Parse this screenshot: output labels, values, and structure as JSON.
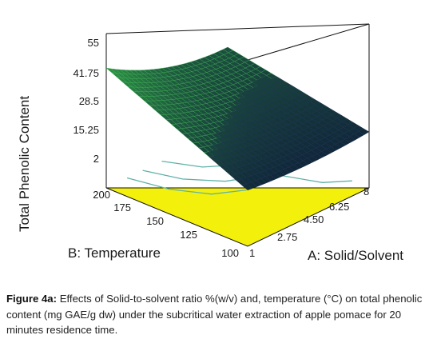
{
  "chart_data": {
    "type": "surface3d",
    "z_axis": {
      "label": "Total Phenolic Content",
      "ticks": [
        "55",
        "41.75",
        "28.5",
        "15.25",
        "2"
      ],
      "range": [
        2,
        55
      ]
    },
    "x_axis": {
      "label": "A: Solid/Solvent",
      "ticks": [
        "1",
        "2.75",
        "4.50",
        "6.25",
        "8"
      ],
      "range": [
        1,
        8
      ]
    },
    "y_axis": {
      "label": "B: Temperature",
      "ticks": [
        "100",
        "125",
        "150",
        "175",
        "200"
      ],
      "range": [
        100,
        200
      ]
    },
    "surface_corners": {
      "x1_y200": 43,
      "x8_y200": 26,
      "x1_y100": 14,
      "x8_y100": 14
    },
    "colors": {
      "surface_high": "#2f9a45",
      "surface_low": "#0c1838",
      "contour_plane": "#f3f00c",
      "contour_lines": "#5fb2a7"
    }
  },
  "caption": {
    "label": "Figure 4a:",
    "text": "Effects of Solid-to-solvent ratio %(w/v) and, temperature (°C) on total phenolic content (mg GAE/g dw) under the subcritical water extraction of apple pomace for 20 minutes residence time."
  }
}
